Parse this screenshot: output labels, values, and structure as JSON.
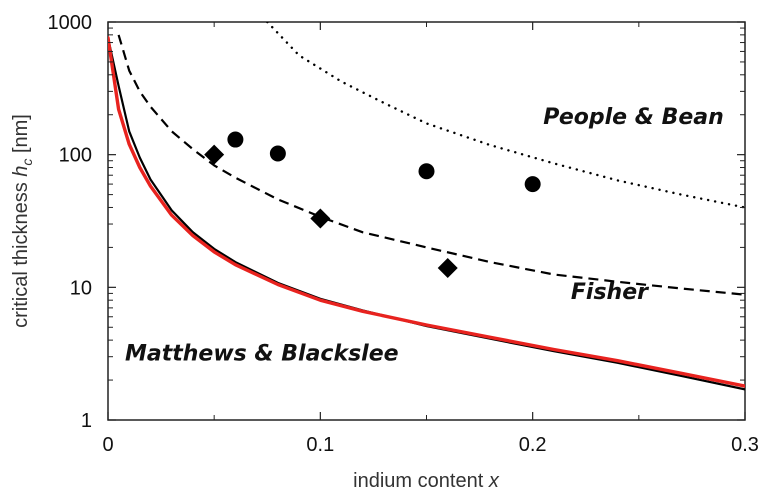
{
  "chart_data": {
    "type": "line",
    "xlabel": "indium content",
    "xlabel_var": "x",
    "ylabel": "critical thickness",
    "ylabel_var": "h",
    "ylabel_sub": "c",
    "ylabel_unit": "[nm]",
    "xlim": [
      0,
      0.3
    ],
    "ylim": [
      1,
      1000
    ],
    "yscale": "log",
    "x_ticks": [
      {
        "v": 0,
        "label": "0"
      },
      {
        "v": 0.1,
        "label": "0.1"
      },
      {
        "v": 0.2,
        "label": "0.2"
      },
      {
        "v": 0.3,
        "label": "0.3"
      }
    ],
    "y_ticks": [
      {
        "v": 1,
        "label": "1"
      },
      {
        "v": 10,
        "label": "10"
      },
      {
        "v": 100,
        "label": "100"
      },
      {
        "v": 1000,
        "label": "1000"
      }
    ],
    "grid": false,
    "annotations": [
      {
        "id": "people",
        "text": "People & Bean",
        "x": 0.205,
        "y": 170
      },
      {
        "id": "fisher",
        "text": "Fisher",
        "x": 0.218,
        "y": 8.2
      },
      {
        "id": "matthews",
        "text": "Matthews & Blackslee",
        "x": 0.008,
        "y": 2.8
      }
    ],
    "series": [
      {
        "id": "people-bean",
        "style": "dotted",
        "color": "#000000",
        "x": [
          0.075,
          0.09,
          0.11,
          0.13,
          0.15,
          0.18,
          0.21,
          0.24,
          0.27,
          0.3
        ],
        "y": [
          1000,
          560,
          355,
          245,
          172,
          118,
          86,
          64,
          50,
          40
        ]
      },
      {
        "id": "fisher",
        "style": "dashed",
        "color": "#000000",
        "x": [
          0.005,
          0.01,
          0.015,
          0.02,
          0.03,
          0.04,
          0.05,
          0.06,
          0.08,
          0.1,
          0.12,
          0.15,
          0.18,
          0.21,
          0.24,
          0.27,
          0.3
        ],
        "y": [
          800,
          430,
          300,
          230,
          150,
          110,
          83,
          67,
          46,
          34,
          26,
          20,
          15.5,
          12.5,
          11,
          9.8,
          8.8
        ]
      },
      {
        "id": "matthews-black",
        "style": "solid",
        "color": "#000000",
        "x": [
          0,
          0.005,
          0.01,
          0.015,
          0.02,
          0.03,
          0.04,
          0.05,
          0.06,
          0.08,
          0.1,
          0.12,
          0.15,
          0.18,
          0.21,
          0.24,
          0.27,
          0.3
        ],
        "y": [
          760,
          330,
          150,
          95,
          65,
          38,
          26,
          19.5,
          15.5,
          10.8,
          8.2,
          6.7,
          5.1,
          4.1,
          3.3,
          2.7,
          2.15,
          1.7
        ]
      },
      {
        "id": "matthews-red",
        "style": "solid",
        "color": "#e8231f",
        "x": [
          0,
          0.005,
          0.01,
          0.015,
          0.02,
          0.03,
          0.04,
          0.05,
          0.06,
          0.08,
          0.1,
          0.12,
          0.15,
          0.18,
          0.21,
          0.24,
          0.27,
          0.3
        ],
        "y": [
          760,
          220,
          120,
          80,
          58,
          35,
          24.5,
          18.5,
          14.8,
          10.5,
          8.0,
          6.6,
          5.2,
          4.2,
          3.4,
          2.8,
          2.25,
          1.8
        ]
      }
    ],
    "markers": [
      {
        "id": "circles",
        "shape": "circle",
        "color": "#000000",
        "x": [
          0.06,
          0.08,
          0.15,
          0.2
        ],
        "y": [
          130,
          102,
          75,
          60
        ]
      },
      {
        "id": "diamonds",
        "shape": "diamond",
        "color": "#000000",
        "x": [
          0.05,
          0.1,
          0.16
        ],
        "y": [
          100,
          33,
          14
        ]
      }
    ]
  }
}
